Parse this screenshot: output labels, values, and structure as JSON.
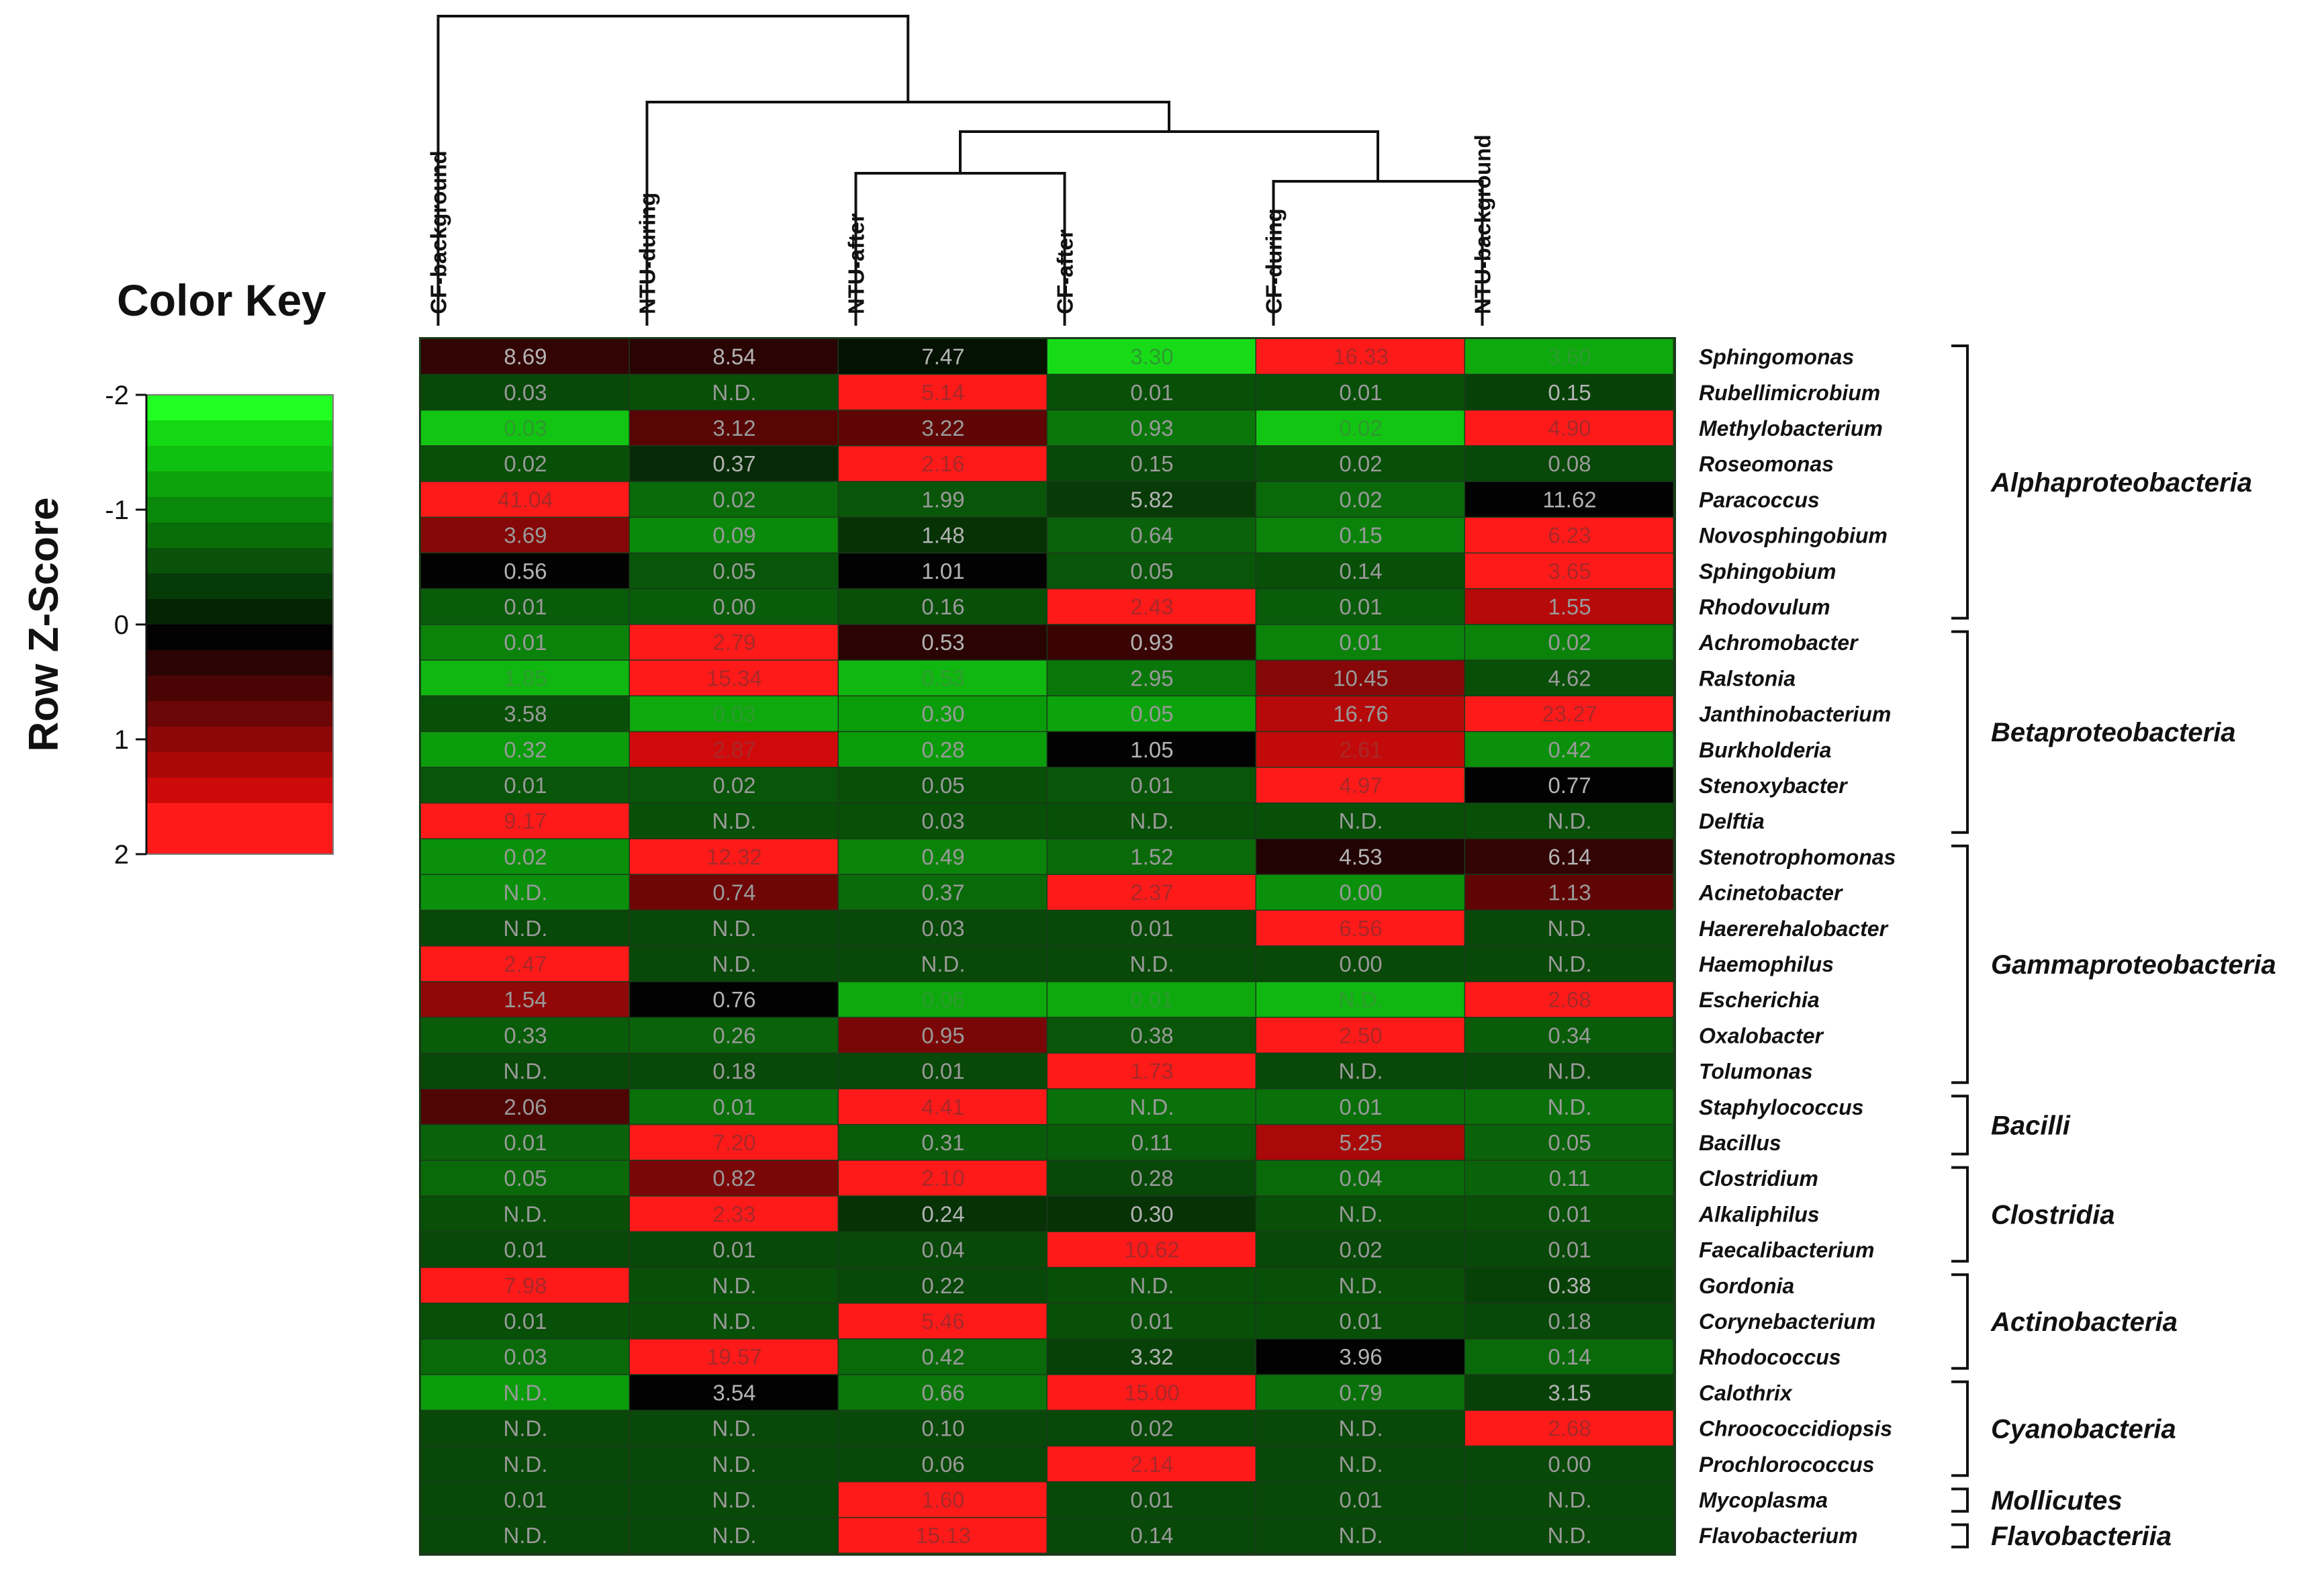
{
  "chart_data": {
    "type": "heatmap",
    "title": "",
    "color_key": {
      "title": "Color Key",
      "axis_label": "Row Z-Score",
      "ticks": [
        "-2",
        "-1",
        "0",
        "1",
        "2"
      ],
      "range": [
        -2,
        2
      ],
      "colors": [
        "#22ff22",
        "#14d814",
        "#10c010",
        "#0ca30c",
        "#0a880a",
        "#086e08",
        "#0a520a",
        "#063a06",
        "#042404",
        "#020202",
        "#2a0404",
        "#4a0404",
        "#6a0606",
        "#8c0808",
        "#aa0808",
        "#cc0a0a",
        "#ff1a1a",
        "#ff1a1a"
      ]
    },
    "columns": [
      "CF-background",
      "NTU-during",
      "NTU-after",
      "CF-after",
      "CF-during",
      "NTU-background"
    ],
    "dendrogram": "(CF-background,(NTU-during,((NTU-after,CF-after),(CF-during,NTU-background))))",
    "rows": [
      {
        "genus": "Sphingomonas",
        "values": [
          "8.69",
          "8.54",
          "7.47",
          "3.30",
          "16.33",
          "3.60"
        ],
        "z": [
          0.3,
          0.25,
          -0.1,
          -1.6,
          2.0,
          -1.2
        ]
      },
      {
        "genus": "Rubellimicrobium",
        "values": [
          "0.03",
          "N.D.",
          "5.14",
          "0.01",
          "0.01",
          "0.15"
        ],
        "z": [
          -0.45,
          -0.5,
          2.0,
          -0.5,
          -0.5,
          -0.4
        ]
      },
      {
        "genus": "Methylobacterium",
        "values": [
          "0.03",
          "3.12",
          "3.22",
          "0.93",
          "0.02",
          "4.90"
        ],
        "z": [
          -1.4,
          0.55,
          0.6,
          -0.8,
          -1.4,
          2.0
        ]
      },
      {
        "genus": "Roseomonas",
        "values": [
          "0.02",
          "0.37",
          "2.16",
          "0.15",
          "0.02",
          "0.08"
        ],
        "z": [
          -0.5,
          -0.25,
          2.0,
          -0.45,
          -0.5,
          -0.45
        ]
      },
      {
        "genus": "Paracoccus",
        "values": [
          "41.04",
          "0.02",
          "1.99",
          "5.82",
          "0.02",
          "11.62"
        ],
        "z": [
          2.0,
          -0.7,
          -0.55,
          -0.35,
          -0.7,
          0.0
        ]
      },
      {
        "genus": "Novosphingobium",
        "values": [
          "3.69",
          "0.09",
          "1.48",
          "0.64",
          "0.15",
          "6.23"
        ],
        "z": [
          0.9,
          -0.95,
          -0.3,
          -0.65,
          -0.9,
          2.0
        ]
      },
      {
        "genus": "Sphingobium",
        "values": [
          "0.56",
          "0.05",
          "1.01",
          "0.05",
          "0.14",
          "3.65"
        ],
        "z": [
          0.0,
          -0.55,
          0.0,
          -0.55,
          -0.5,
          2.0
        ]
      },
      {
        "genus": "Rhodovulum",
        "values": [
          "0.01",
          "0.00",
          "0.16",
          "2.43",
          "0.01",
          "1.55"
        ],
        "z": [
          -0.6,
          -0.6,
          -0.5,
          2.0,
          -0.6,
          1.3
        ]
      },
      {
        "genus": "Achromobacter",
        "values": [
          "0.01",
          "2.79",
          "0.53",
          "0.93",
          "0.01",
          "0.02"
        ],
        "z": [
          -0.9,
          2.0,
          0.25,
          0.35,
          -0.9,
          -0.9
        ]
      },
      {
        "genus": "Ralstonia",
        "values": [
          "1.85",
          "15.34",
          "0.53",
          "2.95",
          "10.45",
          "4.62"
        ],
        "z": [
          -1.3,
          2.0,
          -1.3,
          -0.8,
          0.9,
          -0.5
        ]
      },
      {
        "genus": "Janthinobacterium",
        "values": [
          "3.58",
          "0.03",
          "0.30",
          "0.05",
          "16.76",
          "23.27"
        ],
        "z": [
          -0.5,
          -1.2,
          -1.1,
          -1.15,
          1.3,
          2.0
        ]
      },
      {
        "genus": "Burkholderia",
        "values": [
          "0.32",
          "2.87",
          "0.28",
          "1.05",
          "2.61",
          "0.42"
        ],
        "z": [
          -1.1,
          1.5,
          -1.1,
          0.0,
          1.4,
          -1.0
        ]
      },
      {
        "genus": "Stenoxybacter",
        "values": [
          "0.01",
          "0.02",
          "0.05",
          "0.01",
          "4.97",
          "0.77"
        ],
        "z": [
          -0.55,
          -0.55,
          -0.5,
          -0.55,
          2.0,
          0.0
        ]
      },
      {
        "genus": "Delftia",
        "values": [
          "9.17",
          "N.D.",
          "0.03",
          "N.D.",
          "N.D.",
          "N.D."
        ],
        "z": [
          2.0,
          -0.5,
          -0.5,
          -0.5,
          -0.5,
          -0.5
        ]
      },
      {
        "genus": "Stenotrophomonas",
        "values": [
          "0.02",
          "12.32",
          "0.49",
          "1.52",
          "4.53",
          "6.14"
        ],
        "z": [
          -1.0,
          2.0,
          -0.9,
          -0.7,
          0.2,
          0.3
        ]
      },
      {
        "genus": "Acinetobacter",
        "values": [
          "N.D.",
          "0.74",
          "0.37",
          "2.37",
          "0.00",
          "1.13"
        ],
        "z": [
          -1.0,
          0.7,
          -0.7,
          2.0,
          -1.0,
          0.6
        ]
      },
      {
        "genus": "Haererehalobacter",
        "values": [
          "N.D.",
          "N.D.",
          "0.03",
          "0.01",
          "6.56",
          "N.D."
        ],
        "z": [
          -0.45,
          -0.45,
          -0.45,
          -0.45,
          2.0,
          -0.45
        ]
      },
      {
        "genus": "Haemophilus",
        "values": [
          "2.47",
          "N.D.",
          "N.D.",
          "N.D.",
          "0.00",
          "N.D."
        ],
        "z": [
          2.0,
          -0.45,
          -0.45,
          -0.45,
          -0.45,
          -0.45
        ]
      },
      {
        "genus": "Escherichia",
        "values": [
          "1.54",
          "0.76",
          "0.06",
          "0.01",
          "N.D.",
          "2.68"
        ],
        "z": [
          1.0,
          0.0,
          -1.2,
          -1.2,
          -1.3,
          2.0
        ]
      },
      {
        "genus": "Oxalobacter",
        "values": [
          "0.33",
          "0.26",
          "0.95",
          "0.38",
          "2.50",
          "0.34"
        ],
        "z": [
          -0.6,
          -0.65,
          0.8,
          -0.55,
          2.0,
          -0.6
        ]
      },
      {
        "genus": "Tolumonas",
        "values": [
          "N.D.",
          "0.18",
          "0.01",
          "1.73",
          "N.D.",
          "N.D."
        ],
        "z": [
          -0.45,
          -0.45,
          -0.45,
          2.0,
          -0.45,
          -0.45
        ]
      },
      {
        "genus": "Staphylococcus",
        "values": [
          "2.06",
          "0.01",
          "4.41",
          "N.D.",
          "0.01",
          "N.D."
        ],
        "z": [
          0.5,
          -0.75,
          2.0,
          -0.75,
          -0.75,
          -0.75
        ]
      },
      {
        "genus": "Bacillus",
        "values": [
          "0.01",
          "7.20",
          "0.31",
          "0.11",
          "5.25",
          "0.05"
        ],
        "z": [
          -0.65,
          2.0,
          -0.6,
          -0.6,
          1.2,
          -0.65
        ]
      },
      {
        "genus": "Clostridium",
        "values": [
          "0.05",
          "0.82",
          "2.10",
          "0.28",
          "0.04",
          "0.11"
        ],
        "z": [
          -0.7,
          0.8,
          2.0,
          -0.45,
          -0.7,
          -0.65
        ]
      },
      {
        "genus": "Alkaliphilus",
        "values": [
          "N.D.",
          "2.33",
          "0.24",
          "0.30",
          "N.D.",
          "0.01"
        ],
        "z": [
          -0.5,
          2.0,
          -0.3,
          -0.3,
          -0.5,
          -0.5
        ]
      },
      {
        "genus": "Faecalibacterium",
        "values": [
          "0.01",
          "0.01",
          "0.04",
          "10.62",
          "0.02",
          "0.01"
        ],
        "z": [
          -0.45,
          -0.45,
          -0.45,
          2.0,
          -0.45,
          -0.45
        ]
      },
      {
        "genus": "Gordonia",
        "values": [
          "7.98",
          "N.D.",
          "0.22",
          "N.D.",
          "N.D.",
          "0.38"
        ],
        "z": [
          2.0,
          -0.5,
          -0.45,
          -0.5,
          -0.5,
          -0.4
        ]
      },
      {
        "genus": "Corynebacterium",
        "values": [
          "0.01",
          "N.D.",
          "5.46",
          "0.01",
          "0.01",
          "0.18"
        ],
        "z": [
          -0.5,
          -0.5,
          2.0,
          -0.5,
          -0.5,
          -0.45
        ]
      },
      {
        "genus": "Rhodococcus",
        "values": [
          "0.03",
          "19.57",
          "0.42",
          "3.32",
          "3.96",
          "0.14"
        ],
        "z": [
          -0.7,
          2.0,
          -0.7,
          -0.4,
          0.0,
          -0.7
        ]
      },
      {
        "genus": "Calothrix",
        "values": [
          "N.D.",
          "3.54",
          "0.66",
          "15.00",
          "0.79",
          "3.15"
        ],
        "z": [
          -1.1,
          0.0,
          -0.8,
          2.0,
          -0.75,
          -0.4
        ]
      },
      {
        "genus": "Chroococcidiopsis",
        "values": [
          "N.D.",
          "N.D.",
          "0.10",
          "0.02",
          "N.D.",
          "2.68"
        ],
        "z": [
          -0.45,
          -0.45,
          -0.45,
          -0.45,
          -0.45,
          2.0
        ]
      },
      {
        "genus": "Prochlorococcus",
        "values": [
          "N.D.",
          "N.D.",
          "0.06",
          "2.14",
          "N.D.",
          "0.00"
        ],
        "z": [
          -0.45,
          -0.45,
          -0.45,
          2.0,
          -0.45,
          -0.45
        ]
      },
      {
        "genus": "Mycoplasma",
        "values": [
          "0.01",
          "N.D.",
          "1.60",
          "0.01",
          "0.01",
          "N.D."
        ],
        "z": [
          -0.45,
          -0.45,
          2.0,
          -0.45,
          -0.45,
          -0.45
        ]
      },
      {
        "genus": "Flavobacterium",
        "values": [
          "N.D.",
          "N.D.",
          "15.13",
          "0.14",
          "N.D.",
          "N.D."
        ],
        "z": [
          -0.45,
          -0.45,
          2.0,
          -0.45,
          -0.45,
          -0.45
        ]
      }
    ],
    "groups": [
      {
        "name": "Alphaproteobacteria",
        "rows": [
          0,
          7
        ]
      },
      {
        "name": "Betaproteobacteria",
        "rows": [
          8,
          13
        ]
      },
      {
        "name": "Gammaproteobacteria",
        "rows": [
          14,
          20
        ]
      },
      {
        "name": "Bacilli",
        "rows": [
          21,
          22
        ]
      },
      {
        "name": "Clostridia",
        "rows": [
          23,
          25
        ]
      },
      {
        "name": "Actinobacteria",
        "rows": [
          26,
          28
        ]
      },
      {
        "name": "Cyanobacteria",
        "rows": [
          29,
          31
        ]
      },
      {
        "name": "Mollicutes",
        "rows": [
          32,
          32
        ]
      },
      {
        "name": "Flavobacteriia",
        "rows": [
          33,
          33
        ]
      }
    ]
  }
}
